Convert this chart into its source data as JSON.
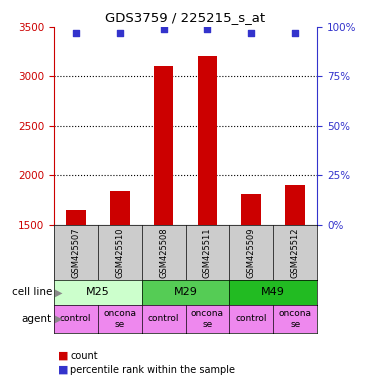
{
  "title": "GDS3759 / 225215_s_at",
  "samples": [
    "GSM425507",
    "GSM425510",
    "GSM425508",
    "GSM425511",
    "GSM425509",
    "GSM425512"
  ],
  "counts": [
    1650,
    1840,
    3100,
    3210,
    1810,
    1900
  ],
  "percentile_ranks": [
    97,
    97,
    99,
    99,
    97,
    97
  ],
  "ylim_left": [
    1500,
    3500
  ],
  "yticks_left": [
    1500,
    2000,
    2500,
    3000,
    3500
  ],
  "ylim_right": [
    0,
    100
  ],
  "yticks_right": [
    0,
    25,
    50,
    75,
    100
  ],
  "bar_color": "#cc0000",
  "dot_color": "#3333cc",
  "cell_lines": [
    {
      "label": "M25",
      "span": [
        0,
        2
      ],
      "color": "#ccffcc"
    },
    {
      "label": "M29",
      "span": [
        2,
        4
      ],
      "color": "#55cc55"
    },
    {
      "label": "M49",
      "span": [
        4,
        6
      ],
      "color": "#22bb22"
    }
  ],
  "agents": [
    "control",
    "onconase",
    "control",
    "onconase",
    "control",
    "onconase"
  ],
  "agent_color": "#ee88ee",
  "sample_box_color": "#cccccc",
  "bar_width": 0.45,
  "baseline": 1500,
  "left_label_color": "#cc0000",
  "right_label_color": "#3333cc"
}
